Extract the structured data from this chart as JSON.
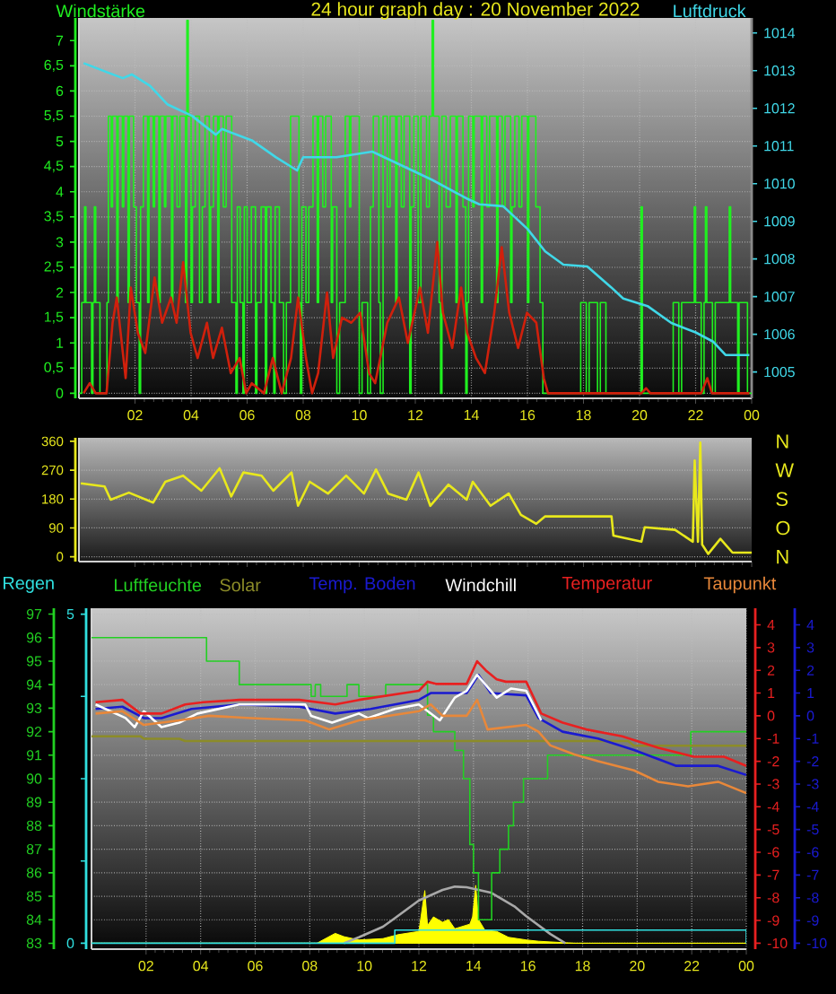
{
  "chart_data": [
    {
      "type": "line",
      "title": "24 hour graph day : 20 November 2022",
      "ylabel": "Windstärke",
      "y2label": "Luftdruck",
      "xlim": [
        "2022-11-20T00:00",
        "2022-11-21T00:00"
      ],
      "xticks": [
        {
          "value": "2022-11-20T02:00",
          "label": "02"
        },
        {
          "value": "2022-11-20T04:00",
          "label": "04"
        },
        {
          "value": "2022-11-20T06:00",
          "label": "06"
        },
        {
          "value": "2022-11-20T08:00",
          "label": "08"
        },
        {
          "value": "2022-11-20T10:00",
          "label": "10"
        },
        {
          "value": "2022-11-20T12:00",
          "label": "12"
        },
        {
          "value": "2022-11-20T14:00",
          "label": "14"
        },
        {
          "value": "2022-11-20T16:00",
          "label": "16"
        },
        {
          "value": "2022-11-20T18:00",
          "label": "18"
        },
        {
          "value": "2022-11-20T20:00",
          "label": "20"
        },
        {
          "value": "2022-11-20T22:00",
          "label": "22"
        },
        {
          "value": "2022-11-21T00:00",
          "label": "00"
        }
      ],
      "ylim": [
        -0.1,
        7.45
      ],
      "yticks": [
        0,
        {
          "value": 0.5,
          "label": "0,5"
        },
        1,
        {
          "value": 1.5,
          "label": "1,5"
        },
        2,
        {
          "value": 2.5,
          "label": "2,5"
        },
        3,
        {
          "value": 3.5,
          "label": "3,5"
        },
        4,
        {
          "value": 4.5,
          "label": "4,5"
        },
        5,
        {
          "value": 5.5,
          "label": "5,5"
        },
        6,
        {
          "value": 6.5,
          "label": "6,5"
        },
        7
      ],
      "y2lim": [
        1004.3,
        1014.4
      ],
      "y2ticks": [
        1005,
        1006,
        1007,
        1008,
        1009,
        1010,
        1011,
        1012,
        1013,
        1014
      ],
      "grid": true,
      "series": [
        {
          "type": "step",
          "color": "#20f020",
          "x": [
            "2022-11-20T00:00",
            "2022-11-20T00:06",
            "2022-11-20T00:12",
            "2022-11-20T00:15",
            "2022-11-20T00:27",
            "2022-11-20T00:30",
            "2022-11-20T00:33",
            "2022-11-20T00:36",
            "2022-11-20T00:45",
            "2022-11-20T01:00",
            "2022-11-20T01:03",
            "2022-11-20T01:09",
            "2022-11-20T01:12",
            "2022-11-20T01:21",
            "2022-11-20T01:24",
            "2022-11-20T01:33",
            "2022-11-20T01:36",
            "2022-11-20T01:45",
            "2022-11-20T01:48",
            "2022-11-20T01:57",
            "2022-11-20T02:03",
            "2022-11-20T02:09",
            "2022-11-20T02:12",
            "2022-11-20T02:18",
            "2022-11-20T02:27",
            "2022-11-20T02:30",
            "2022-11-20T02:39",
            "2022-11-20T02:42",
            "2022-11-20T02:51",
            "2022-11-20T02:54",
            "2022-11-20T03:03",
            "2022-11-20T03:06",
            "2022-11-20T03:18",
            "2022-11-20T03:21",
            "2022-11-20T03:30",
            "2022-11-20T03:36",
            "2022-11-20T03:48",
            "2022-11-20T03:51",
            "2022-11-20T03:54",
            "2022-11-20T04:00",
            "2022-11-20T04:03",
            "2022-11-20T04:09",
            "2022-11-20T04:18",
            "2022-11-20T04:24",
            "2022-11-20T04:30",
            "2022-11-20T04:39",
            "2022-11-20T04:42",
            "2022-11-20T04:48",
            "2022-11-20T04:57",
            "2022-11-20T05:00",
            "2022-11-20T05:09",
            "2022-11-20T05:15",
            "2022-11-20T05:27",
            "2022-11-20T05:36",
            "2022-11-20T05:39",
            "2022-11-20T05:45",
            "2022-11-20T05:51",
            "2022-11-20T05:54",
            "2022-11-20T06:00",
            "2022-11-20T06:09",
            "2022-11-20T06:18",
            "2022-11-20T06:21",
            "2022-11-20T06:30",
            "2022-11-20T06:39",
            "2022-11-20T06:42",
            "2022-11-20T06:51",
            "2022-11-20T06:57",
            "2022-11-20T07:00",
            "2022-11-20T07:09",
            "2022-11-20T07:18",
            "2022-11-20T07:24",
            "2022-11-20T07:33",
            "2022-11-20T07:51",
            "2022-11-20T07:54",
            "2022-11-20T07:57",
            "2022-11-20T08:06",
            "2022-11-20T08:12",
            "2022-11-20T08:21",
            "2022-11-20T08:30",
            "2022-11-20T08:33",
            "2022-11-20T08:42",
            "2022-11-20T08:48",
            "2022-11-20T09:00",
            "2022-11-20T09:03",
            "2022-11-20T09:12",
            "2022-11-20T09:18",
            "2022-11-20T09:30",
            "2022-11-20T09:39",
            "2022-11-20T09:42",
            "2022-11-20T10:00",
            "2022-11-20T10:06",
            "2022-11-20T10:18",
            "2022-11-20T10:24",
            "2022-11-20T10:30",
            "2022-11-20T10:42",
            "2022-11-20T10:45",
            "2022-11-20T10:51",
            "2022-11-20T11:00",
            "2022-11-20T11:06",
            "2022-11-20T11:18",
            "2022-11-20T11:21",
            "2022-11-20T11:30",
            "2022-11-20T11:36",
            "2022-11-20T11:48",
            "2022-11-20T11:51",
            "2022-11-20T11:57",
            "2022-11-20T12:06",
            "2022-11-20T12:12",
            "2022-11-20T12:24",
            "2022-11-20T12:30",
            "2022-11-20T12:36",
            "2022-11-20T12:39",
            "2022-11-20T12:51",
            "2022-11-20T12:54",
            "2022-11-20T12:57",
            "2022-11-20T13:06",
            "2022-11-20T13:15",
            "2022-11-20T13:27",
            "2022-11-20T13:30",
            "2022-11-20T13:42",
            "2022-11-20T13:48",
            "2022-11-20T13:51",
            "2022-11-20T13:54",
            "2022-11-20T14:03",
            "2022-11-20T14:06",
            "2022-11-20T14:21",
            "2022-11-20T14:24",
            "2022-11-20T14:33",
            "2022-11-20T14:39",
            "2022-11-20T14:54",
            "2022-11-20T14:57",
            "2022-11-20T15:06",
            "2022-11-20T15:12",
            "2022-11-20T15:24",
            "2022-11-20T15:27",
            "2022-11-20T15:33",
            "2022-11-20T15:42",
            "2022-11-20T15:48",
            "2022-11-20T16:00",
            "2022-11-20T16:03",
            "2022-11-20T16:18",
            "2022-11-20T16:27",
            "2022-11-20T16:33",
            "2022-11-20T17:54",
            "2022-11-20T18:06",
            "2022-11-20T18:12",
            "2022-11-20T18:30",
            "2022-11-20T18:36",
            "2022-11-20T18:48",
            "2022-11-20T20:03",
            "2022-11-20T20:06",
            "2022-11-20T21:12",
            "2022-11-20T21:24",
            "2022-11-20T21:30",
            "2022-11-20T21:57",
            "2022-11-20T22:00",
            "2022-11-20T22:12",
            "2022-11-20T22:18",
            "2022-11-20T22:21",
            "2022-11-20T22:24",
            "2022-11-20T22:36",
            "2022-11-20T22:42",
            "2022-11-20T23:12",
            "2022-11-20T23:15",
            "2022-11-20T23:30",
            "2022-11-20T23:33",
            "2022-11-20T23:51",
            "2022-11-21T00:00"
          ],
          "values": [
            0,
            1.8,
            3.7,
            1.8,
            0,
            1.8,
            3.7,
            1.8,
            0,
            1.8,
            5.5,
            3.7,
            5.5,
            1.8,
            5.5,
            3.7,
            5.5,
            1.8,
            5.5,
            3.7,
            1.8,
            0,
            3.7,
            5.5,
            1.8,
            5.5,
            3.7,
            5.5,
            1.8,
            5.5,
            3.7,
            5.5,
            1.8,
            5.5,
            3.7,
            5.5,
            1.8,
            7.4,
            5.5,
            1.8,
            3.7,
            5.5,
            1.8,
            3.7,
            5.5,
            1.8,
            3.7,
            5.5,
            1.8,
            5.5,
            3.7,
            5.5,
            1.8,
            0,
            3.7,
            1.8,
            0,
            3.7,
            1.8,
            3.7,
            0,
            1.8,
            3.7,
            0,
            3.7,
            1.8,
            0,
            3.7,
            1.8,
            0,
            1.8,
            5.5,
            1.8,
            0,
            3.7,
            1.8,
            3.7,
            5.5,
            1.8,
            5.5,
            3.7,
            5.5,
            1.8,
            3.7,
            0,
            1.8,
            5.5,
            3.7,
            5.5,
            0,
            1.8,
            0,
            3.7,
            5.5,
            1.8,
            0,
            5.5,
            3.7,
            5.5,
            1.8,
            5.5,
            3.7,
            5.5,
            0,
            3.7,
            5.5,
            1.8,
            5.5,
            3.7,
            5.5,
            7.4,
            5.5,
            1.8,
            0,
            5.5,
            3.7,
            5.5,
            1.8,
            5.5,
            3.7,
            0,
            1.8,
            5.5,
            3.7,
            5.5,
            1.8,
            5.5,
            3.7,
            5.5,
            1.8,
            5.5,
            3.7,
            5.5,
            1.8,
            3.7,
            5.5,
            3.7,
            5.5,
            1.8,
            5.5,
            3.7,
            1.8,
            0,
            1.8,
            0,
            1.8,
            0,
            1.8,
            0,
            3.7,
            0,
            1.8,
            0,
            1.8,
            3.7,
            1.8,
            0,
            1.8,
            3.7,
            1.8,
            0,
            1.8,
            3.7,
            1.8,
            0,
            1.8,
            0,
            0
          ]
        },
        {
          "type": "line",
          "color": "#d0200c",
          "x": [
            "2022-11-20T00:10",
            "2022-11-20T00:23",
            "2022-11-20T00:36",
            "2022-11-20T00:59",
            "2022-11-20T01:12",
            "2022-11-20T01:21",
            "2022-11-20T01:34",
            "2022-11-20T01:40",
            "2022-11-20T01:51",
            "2022-11-20T02:06",
            "2022-11-20T02:22",
            "2022-11-20T02:42",
            "2022-11-20T02:58",
            "2022-11-20T03:17",
            "2022-11-20T03:29",
            "2022-11-20T03:43",
            "2022-11-20T03:59",
            "2022-11-20T04:14",
            "2022-11-20T04:34",
            "2022-11-20T04:47",
            "2022-11-20T05:06",
            "2022-11-20T05:25",
            "2022-11-20T05:44",
            "2022-11-20T05:58",
            "2022-11-20T06:10",
            "2022-11-20T06:36",
            "2022-11-20T06:55",
            "2022-11-20T07:14",
            "2022-11-20T07:34",
            "2022-11-20T07:49",
            "2022-11-20T08:06",
            "2022-11-20T08:19",
            "2022-11-20T08:32",
            "2022-11-20T08:51",
            "2022-11-20T09:04",
            "2022-11-20T09:23",
            "2022-11-20T09:43",
            "2022-11-20T10:02",
            "2022-11-20T10:21",
            "2022-11-20T10:34",
            "2022-11-20T11:00",
            "2022-11-20T11:25",
            "2022-11-20T11:44",
            "2022-11-20T12:10",
            "2022-11-20T12:27",
            "2022-11-20T12:47",
            "2022-11-20T12:59",
            "2022-11-20T13:19",
            "2022-11-20T13:38",
            "2022-11-20T13:51",
            "2022-11-20T14:10",
            "2022-11-20T14:29",
            "2022-11-20T14:49",
            "2022-11-20T15:05",
            "2022-11-20T15:21",
            "2022-11-20T15:40",
            "2022-11-20T15:59",
            "2022-11-20T16:19",
            "2022-11-20T16:35",
            "2022-11-20T16:44",
            "2022-11-20T20:04",
            "2022-11-20T20:14",
            "2022-11-20T20:23",
            "2022-11-20T22:12",
            "2022-11-20T22:25",
            "2022-11-20T22:35",
            "2022-11-20T23:55"
          ],
          "values": [
            0,
            0.2,
            0,
            0,
            1.4,
            1.9,
            0.8,
            0.3,
            2.1,
            1.2,
            0.8,
            2.3,
            1.4,
            1.9,
            1.4,
            2.6,
            1.2,
            0.7,
            1.4,
            0.7,
            1.3,
            0.4,
            0.7,
            0,
            0.2,
            0,
            0.7,
            0,
            0.7,
            1.9,
            0.7,
            0,
            0.4,
            2.0,
            0.7,
            1.5,
            1.4,
            1.6,
            0.4,
            0.2,
            1.4,
            1.9,
            1.0,
            2.1,
            1.2,
            3.0,
            1.6,
            0.9,
            2.1,
            1.2,
            0.7,
            0.4,
            1.6,
            2.9,
            1.6,
            0.9,
            1.6,
            1.4,
            0.3,
            0,
            0,
            0.1,
            0,
            0,
            0.3,
            0,
            0
          ]
        },
        {
          "type": "line",
          "axis": "y2",
          "color": "#40d8e8",
          "x": [
            "2022-11-20T00:10",
            "2022-11-20T01:02",
            "2022-11-20T01:34",
            "2022-11-20T01:53",
            "2022-11-20T02:32",
            "2022-11-20T03:10",
            "2022-11-20T04:02",
            "2022-11-20T04:53",
            "2022-11-20T05:06",
            "2022-11-20T06:10",
            "2022-11-20T07:02",
            "2022-11-20T07:47",
            "2022-11-20T08:00",
            "2022-11-20T09:11",
            "2022-11-20T10:28",
            "2022-11-20T12:36",
            "2022-11-20T13:51",
            "2022-11-20T14:17",
            "2022-11-20T15:08",
            "2022-11-20T16:00",
            "2022-11-20T16:38",
            "2022-11-20T17:17",
            "2022-11-20T18:08",
            "2022-11-20T18:59",
            "2022-11-20T19:25",
            "2022-11-20T20:17",
            "2022-11-20T21:08",
            "2022-11-20T22:00",
            "2022-11-20T22:38",
            "2022-11-20T23:04",
            "2022-11-20T23:55"
          ],
          "values": [
            1013.2,
            1012.95,
            1012.8,
            1012.9,
            1012.6,
            1012.1,
            1011.8,
            1011.3,
            1011.45,
            1011.15,
            1010.7,
            1010.35,
            1010.7,
            1010.7,
            1010.85,
            1010.1,
            1009.6,
            1009.45,
            1009.4,
            1008.8,
            1008.2,
            1007.85,
            1007.8,
            1007.25,
            1006.95,
            1006.75,
            1006.3,
            1006.05,
            1005.8,
            1005.45,
            1005.45
          ]
        }
      ]
    },
    {
      "type": "line",
      "xlim": [
        "2022-11-20T00:00",
        "2022-11-21T00:00"
      ],
      "xticks": [
        "2022-11-20T02:00",
        "2022-11-20T04:00",
        "2022-11-20T06:00",
        "2022-11-20T08:00",
        "2022-11-20T10:00",
        "2022-11-20T12:00",
        "2022-11-20T14:00",
        "2022-11-20T16:00",
        "2022-11-20T18:00",
        "2022-11-20T20:00",
        "2022-11-20T22:00",
        "2022-11-21T00:00"
      ],
      "ylim": [
        -15,
        371
      ],
      "yticks": [
        0,
        90,
        180,
        270,
        360
      ],
      "annotations": [
        "N",
        "W",
        "S",
        "O",
        "N"
      ],
      "tick_labels": "y",
      "grid": "y",
      "series": [
        {
          "color": "#e8e81c",
          "x": [
            "2022-11-20T00:04",
            "2022-11-20T00:55",
            "2022-11-20T01:08",
            "2022-11-20T01:47",
            "2022-11-20T02:39",
            "2022-11-20T03:05",
            "2022-11-20T03:43",
            "2022-11-20T04:22",
            "2022-11-20T05:01",
            "2022-11-20T05:26",
            "2022-11-20T05:52",
            "2022-11-20T06:31",
            "2022-11-20T06:56",
            "2022-11-20T07:35",
            "2022-11-20T07:49",
            "2022-11-20T08:14",
            "2022-11-20T08:53",
            "2022-11-20T09:32",
            "2022-11-20T10:10",
            "2022-11-20T10:36",
            "2022-11-20T11:02",
            "2022-11-20T11:41",
            "2022-11-20T12:07",
            "2022-11-20T12:32",
            "2022-11-20T13:11",
            "2022-11-20T13:50",
            "2022-11-20T14:03",
            "2022-11-20T14:41",
            "2022-11-20T15:20",
            "2022-11-20T15:46",
            "2022-11-20T16:19",
            "2022-11-20T16:38",
            "2022-11-20T19:00",
            "2022-11-20T19:04",
            "2022-11-20T20:04",
            "2022-11-20T20:11",
            "2022-11-20T21:16",
            "2022-11-20T21:54",
            "2022-11-20T21:58",
            "2022-11-20T22:05",
            "2022-11-20T22:10",
            "2022-11-20T22:14",
            "2022-11-20T22:27",
            "2022-11-20T22:53",
            "2022-11-20T23:19",
            "2022-11-21T00:00"
          ],
          "values": [
            229,
            219,
            178,
            200,
            169,
            234,
            253,
            206,
            276,
            188,
            263,
            253,
            206,
            263,
            159,
            234,
            197,
            253,
            197,
            272,
            197,
            178,
            263,
            159,
            225,
            178,
            234,
            159,
            197,
            131,
            103,
            126,
            126,
            66,
            47,
            92,
            84,
            47,
            300,
            47,
            356,
            38,
            9,
            56,
            13,
            13
          ]
        }
      ]
    },
    {
      "type": "line",
      "xlim": [
        "2022-11-20T00:00",
        "2022-11-21T00:00"
      ],
      "xticks": [
        {
          "value": "2022-11-20T02:00",
          "label": "02"
        },
        {
          "value": "2022-11-20T04:00",
          "label": "04"
        },
        {
          "value": "2022-11-20T06:00",
          "label": "06"
        },
        {
          "value": "2022-11-20T08:00",
          "label": "08"
        },
        {
          "value": "2022-11-20T10:00",
          "label": "10"
        },
        {
          "value": "2022-11-20T12:00",
          "label": "12"
        },
        {
          "value": "2022-11-20T14:00",
          "label": "14"
        },
        {
          "value": "2022-11-20T16:00",
          "label": "16"
        },
        {
          "value": "2022-11-20T18:00",
          "label": "18"
        },
        {
          "value": "2022-11-20T20:00",
          "label": "20"
        },
        {
          "value": "2022-11-20T22:00",
          "label": "22"
        },
        {
          "value": "2022-11-21T00:00",
          "label": "00"
        }
      ],
      "ylim": [
        82.75,
        97.25
      ],
      "yticks": [
        83,
        84,
        85,
        86,
        87,
        88,
        89,
        90,
        91,
        92,
        93,
        94,
        95,
        96,
        97
      ],
      "y2lim": [
        -10.26,
        4.73
      ],
      "y2ticks": [
        -10,
        -9,
        -8,
        -7,
        -6,
        -5,
        -4,
        -3,
        -2,
        -1,
        0,
        1,
        2,
        3,
        4
      ],
      "y3lim": [
        -0.09,
        5.09
      ],
      "y3ticks": [
        0,
        {
          "value": 1.25,
          "label": null
        },
        {
          "value": 2.5,
          "label": null
        },
        {
          "value": 3.75,
          "label": null
        },
        5
      ],
      "annotations": [
        "4",
        "3",
        "2",
        "1",
        "0",
        "-1",
        "-2",
        "-3",
        "-4",
        "-5",
        "-6",
        "-7",
        "-8",
        "-9",
        "-10"
      ],
      "grid": true,
      "legend": "top",
      "series": [
        {
          "type": "area",
          "axis": "y3",
          "color": "#ffff00",
          "x": [
            "2022-11-20T00:00",
            "2022-11-20T08:16",
            "2022-11-20T08:29",
            "2022-11-20T08:56",
            "2022-11-20T09:15",
            "2022-11-20T09:48",
            "2022-11-20T10:41",
            "2022-11-20T11:14",
            "2022-11-20T12:00",
            "2022-11-20T12:13",
            "2022-11-20T12:19",
            "2022-11-20T12:32",
            "2022-11-20T12:52",
            "2022-11-20T13:05",
            "2022-11-20T13:19",
            "2022-11-20T13:52",
            "2022-11-20T13:58",
            "2022-11-20T14:05",
            "2022-11-20T14:11",
            "2022-11-20T14:25",
            "2022-11-20T14:51",
            "2022-11-20T15:17",
            "2022-11-20T15:56",
            "2022-11-20T16:23",
            "2022-11-20T17:42",
            "2022-11-21T00:00"
          ],
          "values": [
            0,
            0,
            0.05,
            0.15,
            0.1,
            0.05,
            0.07,
            0.13,
            0.18,
            0.8,
            0.27,
            0.4,
            0.32,
            0.36,
            0.22,
            0.29,
            0.4,
            0.88,
            0.36,
            0.2,
            0.18,
            0.09,
            0.05,
            0.03,
            0,
            0
          ]
        },
        {
          "type": "line",
          "axis": "y3",
          "color": "#a8a8a8",
          "x": [
            "2022-11-20T09:15",
            "2022-11-20T09:48",
            "2022-11-20T10:41",
            "2022-11-20T11:07",
            "2022-11-20T12:00",
            "2022-11-20T12:52",
            "2022-11-20T13:19",
            "2022-11-20T13:45",
            "2022-11-20T14:38",
            "2022-11-20T15:30",
            "2022-11-20T15:56",
            "2022-11-20T16:49",
            "2022-11-20T17:22"
          ],
          "values": [
            0,
            0.09,
            0.25,
            0.38,
            0.65,
            0.81,
            0.86,
            0.85,
            0.77,
            0.56,
            0.41,
            0.14,
            0
          ]
        },
        {
          "type": "step",
          "name": "Regen",
          "axis": "y3",
          "color": "#30e0e0",
          "x": [
            "2022-11-20T00:00",
            "2022-11-20T11:07",
            "2022-11-21T00:00"
          ],
          "values": [
            0,
            0.2,
            0
          ]
        },
        {
          "type": "step",
          "name": "Luftfeuchte",
          "color": "#22d022",
          "x": [
            "2022-11-20T00:00",
            "2022-11-20T04:13",
            "2022-11-20T05:25",
            "2022-11-20T08:03",
            "2022-11-20T08:12",
            "2022-11-20T08:24",
            "2022-11-20T09:22",
            "2022-11-20T09:48",
            "2022-11-20T10:47",
            "2022-11-20T12:19",
            "2022-11-20T12:32",
            "2022-11-20T13:19",
            "2022-11-20T13:38",
            "2022-11-20T13:52",
            "2022-11-20T14:00",
            "2022-11-20T14:11",
            "2022-11-20T14:36",
            "2022-11-20T14:40",
            "2022-11-20T14:58",
            "2022-11-20T15:17",
            "2022-11-20T15:28",
            "2022-11-20T15:50",
            "2022-11-20T16:43",
            "2022-11-20T21:58",
            "2022-11-21T00:00"
          ],
          "values": [
            96,
            95,
            94,
            93.5,
            94,
            93.5,
            94,
            93.5,
            94,
            92.7,
            92,
            91.2,
            90,
            87.2,
            86,
            84,
            84,
            86,
            87,
            88,
            89,
            90,
            91,
            92,
            92
          ]
        },
        {
          "type": "line",
          "name": "Solar",
          "color": "#8c8c28",
          "x": [
            "2022-11-20T00:00",
            "2022-11-20T01:48",
            "2022-11-20T01:55",
            "2022-11-20T03:13",
            "2022-11-20T03:26",
            "2022-11-20T19:40",
            "2022-11-20T19:53",
            "2022-11-21T00:00"
          ],
          "values": [
            91.8,
            91.8,
            91.7,
            91.7,
            91.6,
            91.6,
            91.4,
            91.4
          ]
        },
        {
          "type": "line",
          "name": "Temp. Boden",
          "axis": "y2",
          "color": "#1a1ad0",
          "x": [
            "2022-11-20T00:09",
            "2022-11-20T01:08",
            "2022-11-20T01:55",
            "2022-11-20T02:34",
            "2022-11-20T03:40",
            "2022-11-20T05:25",
            "2022-11-20T07:37",
            "2022-11-20T08:56",
            "2022-11-20T10:14",
            "2022-11-20T12:00",
            "2022-11-20T12:26",
            "2022-11-20T13:45",
            "2022-11-20T14:11",
            "2022-11-20T14:38",
            "2022-11-20T15:56",
            "2022-11-20T16:23",
            "2022-11-20T17:16",
            "2022-11-20T18:34",
            "2022-11-20T19:53",
            "2022-11-20T21:26",
            "2022-11-20T22:58",
            "2022-11-21T00:00"
          ],
          "values": [
            0.3,
            0.4,
            -0.1,
            -0.1,
            0.3,
            0.5,
            0.4,
            0.1,
            0.3,
            0.7,
            1.0,
            1.0,
            1.8,
            1.0,
            0.9,
            -0.1,
            -0.7,
            -1.0,
            -1.5,
            -2.2,
            -2.2,
            -2.6
          ]
        },
        {
          "type": "line",
          "name": "Windchill",
          "axis": "y2",
          "color": "#ffffff",
          "x": [
            "2022-11-20T00:09",
            "2022-11-20T01:15",
            "2022-11-20T01:35",
            "2022-11-20T01:55",
            "2022-11-20T02:34",
            "2022-11-20T03:13",
            "2022-11-20T03:53",
            "2022-11-20T05:25",
            "2022-11-20T07:50",
            "2022-11-20T08:03",
            "2022-11-20T08:49",
            "2022-11-20T09:48",
            "2022-11-20T10:08",
            "2022-11-20T11:07",
            "2022-11-20T12:00",
            "2022-11-20T12:46",
            "2022-11-20T13:19",
            "2022-11-20T13:45",
            "2022-11-20T14:08",
            "2022-11-20T14:51",
            "2022-11-20T15:23",
            "2022-11-20T15:56",
            "2022-11-20T16:29"
          ],
          "values": [
            0.5,
            -0.1,
            -0.5,
            0.2,
            -0.5,
            -0.3,
            0.1,
            0.5,
            0.5,
            0.0,
            -0.3,
            0.1,
            -0.1,
            0.3,
            0.5,
            -0.2,
            0.8,
            1.1,
            1.8,
            0.8,
            1.2,
            1.1,
            -0.2
          ]
        },
        {
          "type": "line",
          "name": "Temperatur",
          "axis": "y2",
          "color": "#e82020",
          "x": [
            "2022-11-20T00:09",
            "2022-11-20T01:08",
            "2022-11-20T01:48",
            "2022-11-20T02:34",
            "2022-11-20T03:26",
            "2022-11-20T04:06",
            "2022-11-20T05:25",
            "2022-11-20T07:37",
            "2022-11-20T08:56",
            "2022-11-20T09:48",
            "2022-11-20T10:54",
            "2022-11-20T12:00",
            "2022-11-20T12:19",
            "2022-11-20T12:39",
            "2022-11-20T13:45",
            "2022-11-20T14:08",
            "2022-11-20T14:27",
            "2022-11-20T14:51",
            "2022-11-20T15:11",
            "2022-11-20T15:56",
            "2022-11-20T16:29",
            "2022-11-20T17:16",
            "2022-11-20T18:08",
            "2022-11-20T19:27",
            "2022-11-20T20:46",
            "2022-11-20T22:05",
            "2022-11-20T23:11",
            "2022-11-21T00:00"
          ],
          "values": [
            0.6,
            0.7,
            0.1,
            0.1,
            0.5,
            0.6,
            0.7,
            0.7,
            0.5,
            0.7,
            0.9,
            1.1,
            1.5,
            1.4,
            1.4,
            2.4,
            2.0,
            1.6,
            1.5,
            1.5,
            0.1,
            -0.3,
            -0.6,
            -0.9,
            -1.4,
            -1.8,
            -1.8,
            -2.2
          ]
        },
        {
          "type": "line",
          "name": "Taupunkt",
          "axis": "y2",
          "color": "#e8883a",
          "x": [
            "2022-11-20T00:09",
            "2022-11-20T01:08",
            "2022-11-20T01:55",
            "2022-11-20T03:13",
            "2022-11-20T04:19",
            "2022-11-20T05:52",
            "2022-11-20T07:50",
            "2022-11-20T08:43",
            "2022-11-20T09:48",
            "2022-11-20T12:00",
            "2022-11-20T12:26",
            "2022-11-20T12:52",
            "2022-11-20T13:45",
            "2022-11-20T14:08",
            "2022-11-20T14:31",
            "2022-11-20T15:56",
            "2022-11-20T16:23",
            "2022-11-20T16:49",
            "2022-11-20T17:42",
            "2022-11-20T18:34",
            "2022-11-20T19:53",
            "2022-11-20T20:46",
            "2022-11-20T21:52",
            "2022-11-20T22:58",
            "2022-11-21T00:00"
          ],
          "values": [
            0.1,
            0.2,
            -0.4,
            -0.2,
            0.0,
            -0.1,
            -0.2,
            -0.6,
            -0.2,
            0.2,
            0.5,
            0.0,
            0.0,
            0.7,
            -0.6,
            -0.4,
            -0.7,
            -1.3,
            -1.7,
            -2.0,
            -2.4,
            -2.9,
            -3.1,
            -2.9,
            -3.4
          ]
        }
      ]
    }
  ]
}
